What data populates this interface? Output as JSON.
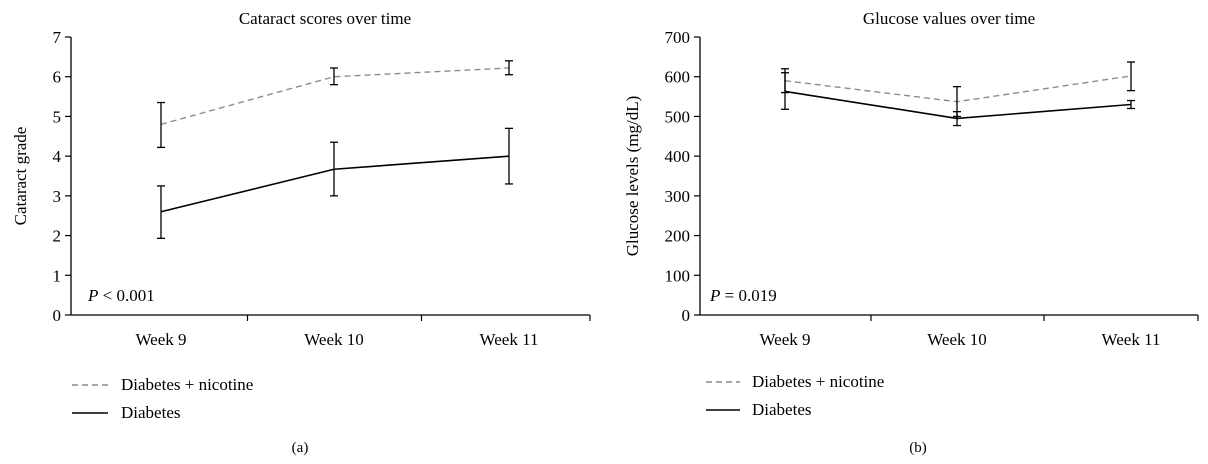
{
  "chart_data": [
    {
      "type": "line",
      "panel_label": "(a)",
      "title": "Cataract scores over time",
      "xlabel": "",
      "ylabel": "Cataract grade",
      "categories": [
        "Week 9",
        "Week 10",
        "Week 11"
      ],
      "ylim": [
        0,
        7
      ],
      "yticks": [
        "0",
        "1",
        "2",
        "3",
        "4",
        "5",
        "6",
        "7"
      ],
      "annotation": {
        "italic": "P",
        "rest": " < 0.001"
      },
      "series": [
        {
          "name": "Diabetes + nicotine",
          "style": "dashed",
          "color": "#8c8c8c",
          "values": [
            4.8,
            6.0,
            6.22
          ],
          "err_low": [
            4.22,
            5.8,
            6.05
          ],
          "err_high": [
            5.35,
            6.22,
            6.4
          ]
        },
        {
          "name": "Diabetes",
          "style": "solid",
          "color": "#000000",
          "values": [
            2.6,
            3.67,
            4.0
          ],
          "err_low": [
            1.93,
            3.0,
            3.3
          ],
          "err_high": [
            3.25,
            4.35,
            4.7
          ]
        }
      ],
      "grid": false,
      "legend": "bottom-left"
    },
    {
      "type": "line",
      "panel_label": "(b)",
      "title": "Glucose values over time",
      "xlabel": "",
      "ylabel": "Glucose levels (mg/dL)",
      "categories": [
        "Week 9",
        "Week 10",
        "Week 11"
      ],
      "ylim": [
        0,
        700
      ],
      "yticks": [
        "0",
        "100",
        "200",
        "300",
        "400",
        "500",
        "600",
        "700"
      ],
      "annotation": {
        "italic": "P",
        "rest": " = 0.019"
      },
      "series": [
        {
          "name": "Diabetes + nicotine",
          "style": "dashed",
          "color": "#8c8c8c",
          "values": [
            590,
            537,
            602
          ],
          "err_low": [
            560,
            500,
            565
          ],
          "err_high": [
            620,
            575,
            637
          ]
        },
        {
          "name": "Diabetes",
          "style": "solid",
          "color": "#000000",
          "values": [
            563,
            495,
            530
          ],
          "err_low": [
            518,
            477,
            520
          ],
          "err_high": [
            610,
            512,
            540
          ]
        }
      ],
      "grid": false,
      "legend": "bottom-left"
    }
  ]
}
